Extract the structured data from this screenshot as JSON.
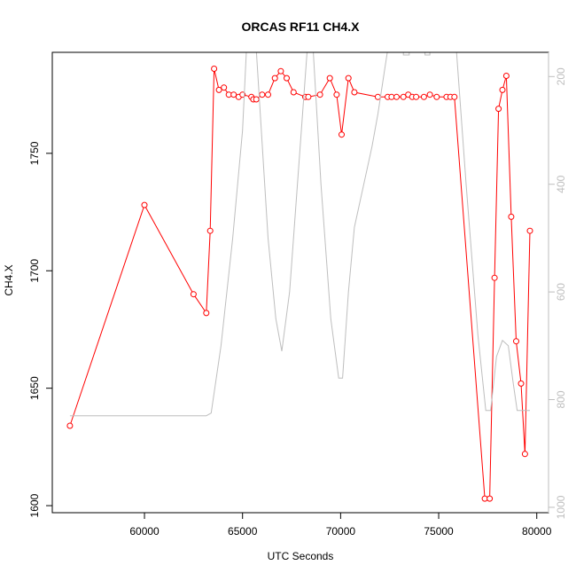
{
  "chart_data": {
    "type": "line",
    "title": "ORCAS RF11 CH4.X",
    "xlabel": "UTC Seconds",
    "ylabel": "CH4.X",
    "xlim": [
      55300,
      80600
    ],
    "ylim": [
      1597,
      1793
    ],
    "y2lim": [
      1010,
      155
    ],
    "y2_reversed": true,
    "x_ticks": [
      60000,
      65000,
      70000,
      75000,
      80000
    ],
    "y_ticks": [
      1600,
      1650,
      1700,
      1750
    ],
    "y2_ticks": [
      200,
      400,
      600,
      800,
      1000
    ],
    "grid": false,
    "legend": "none",
    "colors": {
      "primary": "#ff0000",
      "secondary": "#bebebe",
      "axis": "#000000"
    },
    "series": [
      {
        "axis": "left",
        "color": "#ff0000",
        "marker": "open-circle",
        "x": [
          56200,
          60000,
          62500,
          63150,
          63350,
          63550,
          63800,
          64050,
          64300,
          64550,
          64800,
          65000,
          65450,
          65550,
          65700,
          66000,
          66300,
          66650,
          66950,
          67250,
          67600,
          68200,
          68350,
          68950,
          69450,
          69800,
          70050,
          70400,
          70700,
          71900,
          72400,
          72600,
          72850,
          73200,
          73450,
          73650,
          73850,
          74250,
          74550,
          74900,
          75400,
          75600,
          75800,
          77350,
          77600,
          77850,
          78050,
          78250,
          78450,
          78700,
          78950,
          79200,
          79400,
          79650
        ],
        "y": [
          1634,
          1728,
          1690,
          1682,
          1717,
          1786,
          1777,
          1778,
          1775,
          1775,
          1774,
          1775,
          1774,
          1773,
          1773,
          1775,
          1775,
          1782,
          1785,
          1782,
          1776,
          1774,
          1774,
          1775,
          1782,
          1775,
          1758,
          1782,
          1776,
          1774,
          1774,
          1774,
          1774,
          1774,
          1775,
          1774,
          1774,
          1774,
          1775,
          1774,
          1774,
          1774,
          1774,
          1603,
          1603,
          1697,
          1769,
          1777,
          1783,
          1723,
          1670,
          1652,
          1622,
          1717
        ]
      },
      {
        "axis": "right",
        "color": "#bebebe",
        "marker": "none",
        "x": [
          56200,
          63150,
          63400,
          63900,
          64500,
          65000,
          65200,
          65700,
          66300,
          66700,
          67000,
          67400,
          68300,
          68600,
          69000,
          69500,
          69900,
          70100,
          70400,
          70700,
          71600,
          71900,
          72400,
          72600,
          73200,
          73200,
          73500,
          73500,
          74300,
          74300,
          74550,
          74550,
          75500,
          75900,
          76400,
          77000,
          77400,
          77650,
          77950,
          78250,
          78550,
          78800,
          79000,
          79400,
          79650
        ],
        "y": [
          830,
          830,
          825,
          700,
          500,
          300,
          150,
          150,
          500,
          650,
          710,
          600,
          150,
          150,
          400,
          650,
          760,
          760,
          600,
          480,
          330,
          270,
          150,
          150,
          150,
          160,
          160,
          150,
          150,
          160,
          160,
          150,
          150,
          150,
          400,
          680,
          820,
          820,
          720,
          690,
          700,
          770,
          820,
          820,
          820
        ]
      }
    ]
  }
}
